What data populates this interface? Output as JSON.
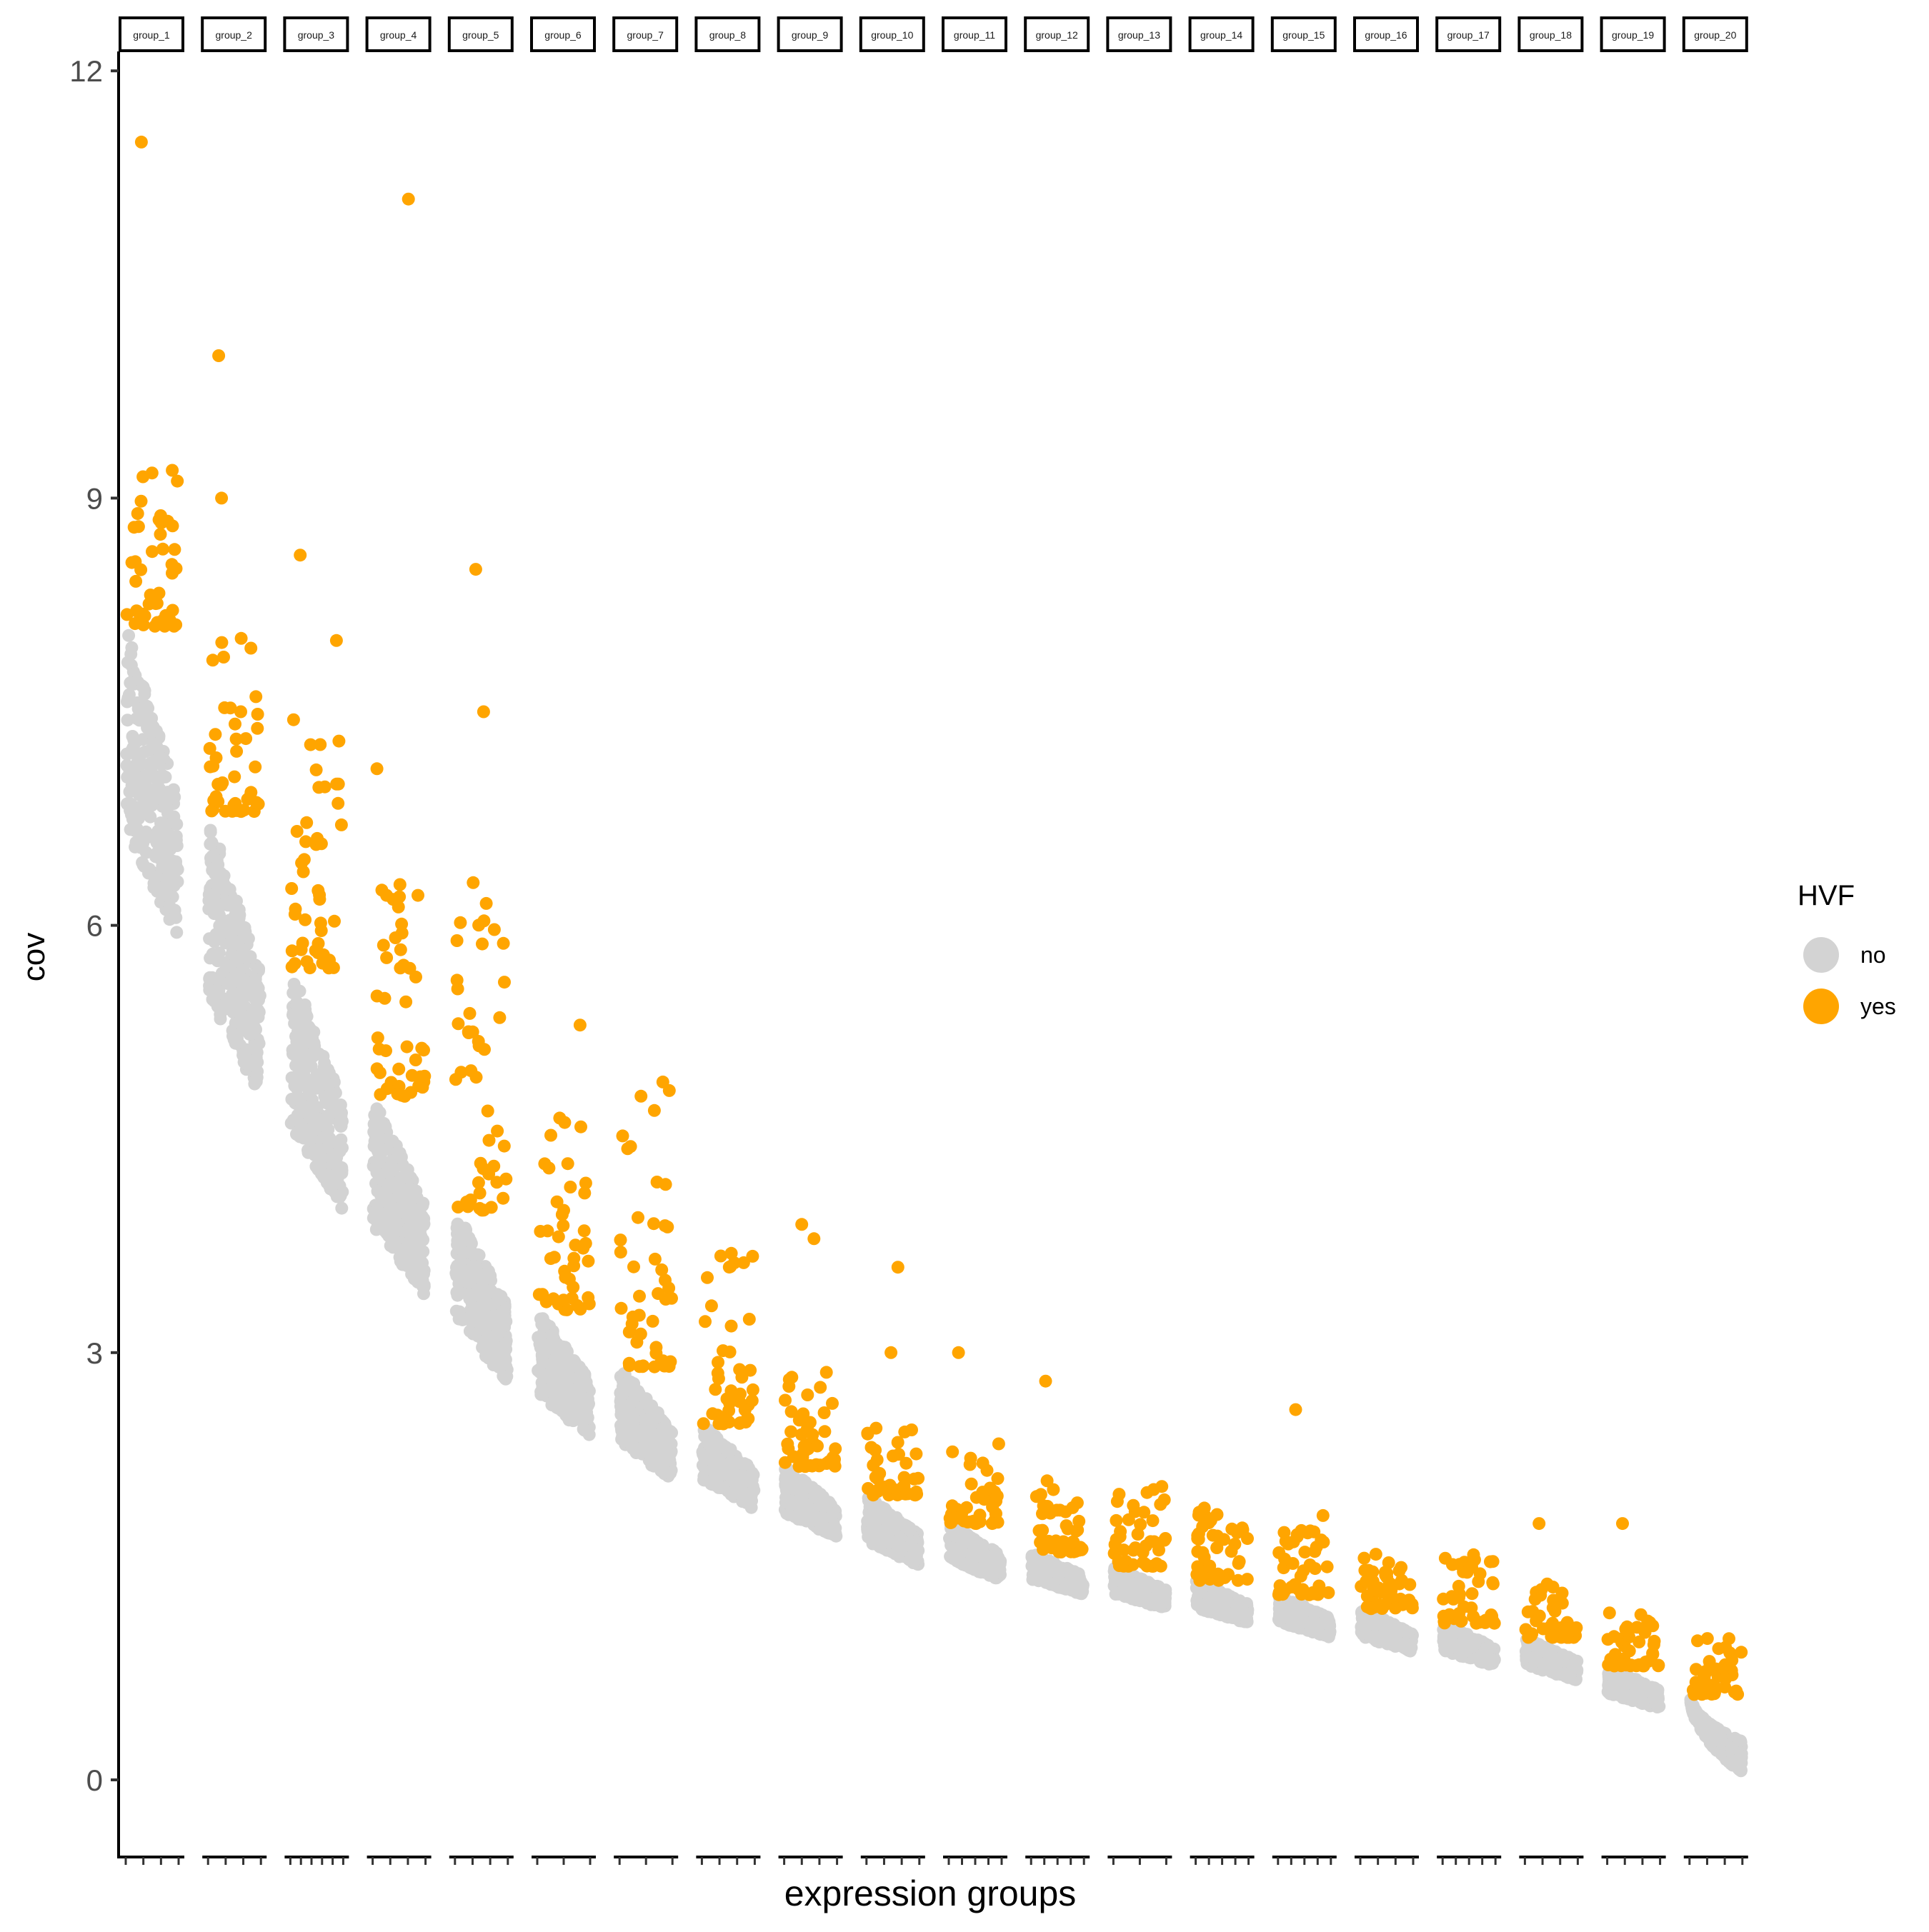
{
  "chart_data": {
    "type": "scatter",
    "subtype": "faceted jitter strip plot",
    "title": "",
    "xlabel": "expression groups",
    "ylabel": "cov",
    "ylim": [
      -0.55,
      12.15
    ],
    "yticks": [
      0,
      3,
      6,
      9,
      12
    ],
    "ytick_labels": [
      "0",
      "3",
      "6",
      "9",
      "12"
    ],
    "grid": false,
    "facet_strip_labels": [
      "group_1",
      "group_2",
      "group_3",
      "group_4",
      "group_5",
      "group_6",
      "group_7",
      "group_8",
      "group_9",
      "group_10",
      "group_11",
      "group_12",
      "group_13",
      "group_14",
      "group_15",
      "group_16",
      "group_17",
      "group_18",
      "group_19",
      "group_20"
    ],
    "x_ticks_per_facet": [
      4,
      4,
      6,
      4,
      4,
      3,
      3,
      4,
      4,
      4,
      5,
      5,
      3,
      5,
      5,
      4,
      5,
      4,
      4,
      4
    ],
    "legend": {
      "title": "HVF",
      "position": "right",
      "entries": [
        {
          "label": "no",
          "color": "#D3D3D3"
        },
        {
          "label": "yes",
          "color": "#FFA500"
        }
      ]
    },
    "series": [
      {
        "name": "no",
        "color": "#D3D3D3",
        "description": "non-HVF points: dense band per group, declining from upper-left to lower-right",
        "gray_top": [
          8.1,
          6.8,
          5.7,
          4.8,
          4.0,
          3.3,
          2.9,
          2.5,
          2.2,
          2.0,
          1.8,
          1.6,
          1.5,
          1.4,
          1.3,
          1.2,
          1.1,
          1.0,
          0.8,
          0.6
        ],
        "gray_bottom": [
          5.9,
          4.8,
          4.0,
          3.4,
          2.8,
          2.4,
          2.1,
          1.9,
          1.7,
          1.5,
          1.4,
          1.3,
          1.2,
          1.1,
          1.0,
          0.9,
          0.8,
          0.7,
          0.5,
          0.05
        ]
      },
      {
        "name": "yes",
        "color": "#FFA500",
        "description": "HVF points: above the per-group threshold",
        "threshold": [
          8.1,
          6.8,
          5.7,
          4.8,
          4.0,
          3.3,
          2.9,
          2.5,
          2.2,
          2.0,
          1.8,
          1.6,
          1.5,
          1.4,
          1.3,
          1.2,
          1.1,
          1.0,
          0.8,
          0.6
        ],
        "cluster_top": [
          9.2,
          8.1,
          7.5,
          6.3,
          6.3,
          4.7,
          4.9,
          3.8,
          2.9,
          2.5,
          2.4,
          2.1,
          2.1,
          2.0,
          1.9,
          1.6,
          1.6,
          1.4,
          1.2,
          1.0
        ],
        "max": [
          11.5,
          10.0,
          8.6,
          11.1,
          8.5,
          5.3,
          4.9,
          3.8,
          3.9,
          3.6,
          3.0,
          2.8,
          2.2,
          2.3,
          2.6,
          1.7,
          1.6,
          1.8,
          1.8,
          1.0
        ],
        "notable_outliers": [
          {
            "group": "group_1",
            "values": [
              11.5,
              9.15,
              8.85,
              8.8
            ]
          },
          {
            "group": "group_2",
            "values": [
              10.0,
              9.0
            ]
          },
          {
            "group": "group_3",
            "values": [
              8.6,
              8.0
            ]
          },
          {
            "group": "group_4",
            "values": [
              11.1,
              7.1
            ]
          },
          {
            "group": "group_5",
            "values": [
              8.5,
              7.5,
              6.3
            ]
          },
          {
            "group": "group_6",
            "values": [
              5.3
            ]
          },
          {
            "group": "group_7",
            "values": [
              4.9,
              4.7
            ]
          },
          {
            "group": "group_9",
            "values": [
              3.9,
              3.8
            ]
          },
          {
            "group": "group_10",
            "values": [
              3.6,
              3.0
            ]
          },
          {
            "group": "group_11",
            "values": [
              3.0
            ]
          },
          {
            "group": "group_12",
            "values": [
              2.8
            ]
          },
          {
            "group": "group_15",
            "values": [
              2.6
            ]
          },
          {
            "group": "group_18",
            "values": [
              1.8
            ]
          },
          {
            "group": "group_19",
            "values": [
              1.8
            ]
          }
        ]
      }
    ]
  }
}
